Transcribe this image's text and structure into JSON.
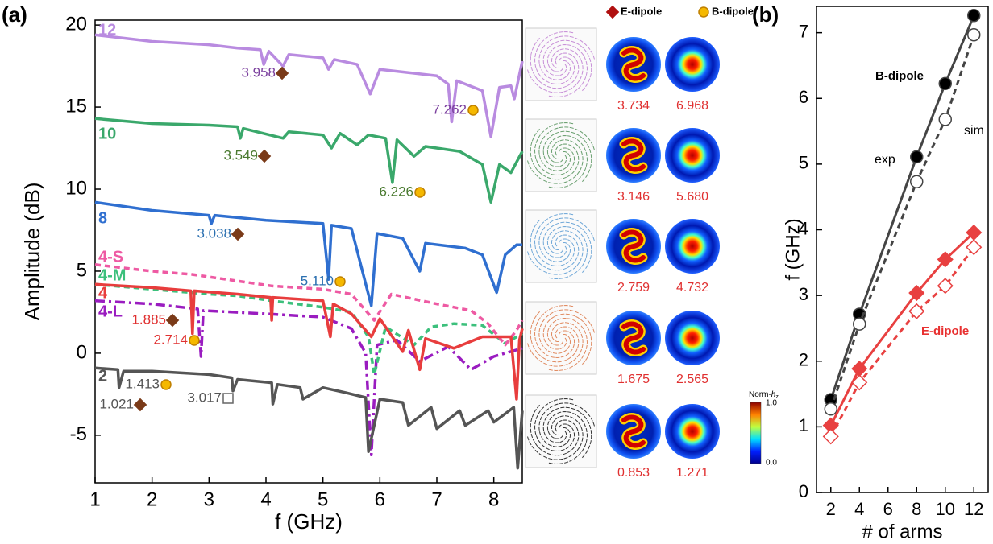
{
  "panel_labels": [
    "(a)",
    "(b)"
  ],
  "chart_data": [
    {
      "type": "line",
      "xlabel": "f (GHz)",
      "ylabel": "Amplitude (dB)",
      "xlim": [
        1,
        8.5
      ],
      "ylim": [
        -7.9,
        20.3
      ],
      "xticks": [
        1,
        2,
        3,
        4,
        5,
        6,
        7,
        8
      ],
      "yticks": [
        -5,
        0,
        5,
        10,
        15,
        20
      ],
      "series": [
        {
          "name": "12",
          "color": "#b98be0",
          "dash": "solid",
          "x": [
            1,
            1.5,
            2,
            2.5,
            3,
            3.5,
            3.9,
            3.96,
            4.05,
            4.3,
            4.4,
            5,
            5.1,
            5.2,
            5.6,
            5.83,
            6.0,
            6.5,
            7,
            7.2,
            7.26,
            7.35,
            7.8,
            7.95,
            8.1,
            8.3,
            8.36,
            8.45,
            8.5
          ],
          "values": [
            19.4,
            19.2,
            19.0,
            18.9,
            18.8,
            18.6,
            18.5,
            17.6,
            18.4,
            17.5,
            18.2,
            18.0,
            17.3,
            17.9,
            17.6,
            15.8,
            17.3,
            17.1,
            16.9,
            16.4,
            14.1,
            16.6,
            16.0,
            13.2,
            16.2,
            16.3,
            15.5,
            17.0,
            17.8
          ]
        },
        {
          "name": "10",
          "color": "#3aa86b",
          "dash": "solid",
          "x": [
            1,
            2,
            3,
            3.5,
            3.55,
            3.6,
            4.3,
            4.4,
            5.0,
            5.15,
            5.3,
            5.6,
            5.8,
            6.1,
            6.22,
            6.3,
            6.6,
            6.8,
            7.4,
            7.8,
            7.95,
            8.1,
            8.3,
            8.5
          ],
          "values": [
            14.3,
            14.0,
            13.9,
            13.8,
            13.1,
            13.7,
            13.1,
            13.5,
            13.3,
            12.5,
            13.4,
            12.7,
            13.3,
            13.1,
            10.4,
            13.0,
            12.0,
            12.6,
            12.3,
            11.5,
            9.2,
            11.5,
            11.0,
            12.3
          ]
        },
        {
          "name": "8",
          "color": "#2f6fd0",
          "dash": "solid",
          "x": [
            1,
            2,
            3,
            3.04,
            3.1,
            4,
            5.0,
            5.1,
            5.15,
            5.5,
            5.85,
            5.95,
            6.4,
            6.7,
            6.8,
            7.5,
            7.8,
            8.05,
            8.2,
            8.4,
            8.5
          ],
          "values": [
            9.2,
            8.7,
            8.4,
            7.9,
            8.4,
            8.1,
            7.9,
            4.5,
            7.8,
            7.6,
            2.9,
            7.3,
            7.0,
            5.0,
            6.7,
            6.4,
            6.0,
            3.7,
            6.0,
            6.6,
            6.6
          ]
        },
        {
          "name": "4-S",
          "color": "#ee5aa3",
          "dash": "dash",
          "x": [
            1,
            2,
            2.7,
            3.5,
            4.1,
            5.0,
            5.5,
            5.9,
            6.2,
            7.0,
            7.6,
            7.9,
            8.2,
            8.4,
            8.5
          ],
          "values": [
            5.4,
            5.0,
            4.8,
            4.4,
            4.1,
            3.9,
            3.6,
            2.0,
            3.6,
            3.0,
            2.6,
            1.8,
            0.5,
            1.4,
            2.0
          ]
        },
        {
          "name": "4-M",
          "color": "#3cc07c",
          "dash": "dash",
          "x": [
            1,
            2,
            3,
            3.5,
            4.1,
            5.0,
            5.5,
            5.8,
            5.9,
            6.1,
            6.6,
            6.9,
            7.3,
            7.8,
            8.2,
            8.5
          ],
          "values": [
            4.2,
            3.9,
            3.6,
            3.5,
            3.2,
            2.8,
            2.5,
            1.0,
            -1.3,
            1.6,
            0.5,
            1.6,
            1.8,
            1.7,
            0.6,
            1.2
          ]
        },
        {
          "name": "4",
          "color": "#e83d3d",
          "dash": "solid",
          "x": [
            1,
            2,
            2.68,
            2.71,
            2.74,
            3.5,
            4.08,
            4.1,
            4.12,
            5.0,
            5.13,
            5.18,
            5.5,
            5.85,
            6.0,
            6.4,
            6.5,
            6.7,
            6.8,
            7.3,
            7.8,
            8.3,
            8.4,
            8.45,
            8.5
          ],
          "values": [
            4.2,
            4.0,
            3.8,
            1.2,
            3.8,
            3.6,
            3.4,
            2.0,
            3.4,
            3.2,
            1.0,
            3.0,
            2.4,
            1.0,
            2.1,
            0.1,
            1.4,
            -1.0,
            0.9,
            0.3,
            1.0,
            1.0,
            -2.8,
            0.8,
            1.5
          ]
        },
        {
          "name": "4-L",
          "color": "#9a1cc0",
          "dash": "dashdot",
          "x": [
            1,
            2,
            2.8,
            2.86,
            2.9,
            4.0,
            5.0,
            5.5,
            5.75,
            5.85,
            5.95,
            6.3,
            6.7,
            7.2,
            7.6,
            8.0,
            8.5
          ],
          "values": [
            3.2,
            3.0,
            2.7,
            -0.2,
            2.6,
            2.4,
            2.2,
            1.5,
            0.0,
            -6.2,
            0.5,
            0.8,
            -0.5,
            0.4,
            -1.0,
            -0.2,
            0.3
          ]
        },
        {
          "name": "2",
          "color": "#555555",
          "dash": "solid",
          "x": [
            1,
            1.4,
            1.42,
            1.5,
            2,
            3,
            3.4,
            3.42,
            3.5,
            4.1,
            4.12,
            4.2,
            4.6,
            4.65,
            5.0,
            5.4,
            5.75,
            5.8,
            6.0,
            6.4,
            6.5,
            6.9,
            7.0,
            7.4,
            7.5,
            7.9,
            8.0,
            8.35,
            8.42,
            8.5
          ],
          "values": [
            -0.9,
            -1.0,
            -2.1,
            -1.1,
            -1.1,
            -1.3,
            -1.5,
            -2.3,
            -1.6,
            -1.8,
            -3.1,
            -1.9,
            -2.1,
            -2.8,
            -2.1,
            -2.4,
            -2.7,
            -6.0,
            -2.8,
            -3.0,
            -4.4,
            -3.3,
            -4.6,
            -3.5,
            -4.4,
            -3.5,
            -4.2,
            -3.3,
            -7.0,
            -3.5
          ]
        }
      ],
      "annotations": [
        {
          "text": "3.958",
          "marker": "diamond",
          "color": "#7a3e9d"
        },
        {
          "text": "7.262",
          "marker": "circle",
          "color": "#7a3e9d"
        },
        {
          "text": "3.549",
          "marker": "diamond",
          "color": "#4a7a30"
        },
        {
          "text": "6.226",
          "marker": "circle",
          "color": "#4a7a30"
        },
        {
          "text": "3.038",
          "marker": "diamond",
          "color": "#2a6fb0"
        },
        {
          "text": "5.110",
          "marker": "circle",
          "color": "#2a6fb0"
        },
        {
          "text": "1.885",
          "marker": "diamond",
          "color": "#e03030"
        },
        {
          "text": "2.714",
          "marker": "circle",
          "color": "#e03030"
        },
        {
          "text": "1.413",
          "marker": "circle",
          "color": "#555555"
        },
        {
          "text": "1.021",
          "marker": "diamond",
          "color": "#555555"
        },
        {
          "text": "3.017",
          "marker": "square",
          "color": "#555555"
        }
      ]
    },
    {
      "type": "line",
      "xlabel": "# of arms",
      "ylabel": "f (GHz)",
      "xlim": [
        1,
        13
      ],
      "ylim": [
        0,
        7.4
      ],
      "xticks": [
        2,
        4,
        6,
        8,
        10,
        12
      ],
      "yticks": [
        0,
        1,
        2,
        3,
        4,
        5,
        6,
        7
      ],
      "series": [
        {
          "color": "#444444",
          "marker": "circle",
          "filled": true,
          "dash": "solid",
          "x": [
            2,
            4,
            8,
            10,
            12
          ],
          "values": [
            1.413,
            2.714,
            5.11,
            6.226,
            7.262
          ]
        },
        {
          "color": "#444444",
          "marker": "circle",
          "filled": false,
          "dash": "dash",
          "x": [
            2,
            4,
            8,
            10,
            12
          ],
          "values": [
            1.271,
            2.565,
            4.732,
            5.68,
            6.968
          ]
        },
        {
          "color": "#e84040",
          "marker": "diamond",
          "filled": true,
          "dash": "solid",
          "x": [
            2,
            4,
            8,
            10,
            12
          ],
          "values": [
            1.021,
            1.885,
            3.038,
            3.549,
            3.958
          ]
        },
        {
          "color": "#e84040",
          "marker": "diamond",
          "filled": false,
          "dash": "dash",
          "x": [
            2,
            4,
            8,
            10,
            12
          ],
          "values": [
            0.853,
            1.675,
            2.759,
            3.146,
            3.734
          ]
        }
      ],
      "annotations": [
        {
          "text": "B-dipole",
          "color": "#000000",
          "bold": true
        },
        {
          "text": "exp",
          "color": "#000000",
          "bold": false
        },
        {
          "text": "sim",
          "color": "#000000",
          "bold": false
        },
        {
          "text": "E-dipole",
          "color": "#e83030",
          "bold": true
        }
      ]
    }
  ],
  "mode_legend": [
    "E-dipole",
    "B-dipole"
  ],
  "mode_maps": [
    {
      "color": "#c890d8",
      "e": "3.734",
      "b": "6.968"
    },
    {
      "color": "#6aa070",
      "e": "3.146",
      "b": "5.680"
    },
    {
      "color": "#70a8d8",
      "e": "2.759",
      "b": "4.732"
    },
    {
      "color": "#e08a60",
      "e": "1.675",
      "b": "2.565"
    },
    {
      "color": "#333333",
      "e": "0.853",
      "b": "1.271"
    }
  ],
  "colorbar": {
    "title": "Norm-",
    "title_var": "h",
    "title_sub": "z",
    "max": "1.0",
    "min": "0.0"
  }
}
